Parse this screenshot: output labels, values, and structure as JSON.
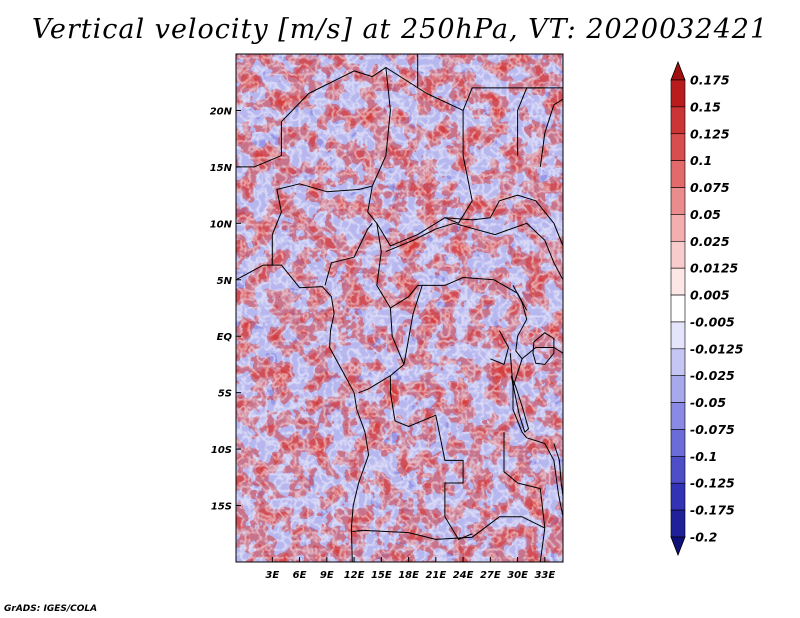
{
  "title": "Vertical velocity [m/s] at 250hPa, VT: 2020032421",
  "credit": "GrADS: IGES/COLA",
  "map": {
    "lon_range": [
      -1,
      35
    ],
    "lat_range": [
      -20,
      25
    ],
    "x_ticks": [
      "3E",
      "6E",
      "9E",
      "12E",
      "15E",
      "18E",
      "21E",
      "24E",
      "27E",
      "30E",
      "33E"
    ],
    "x_tick_values": [
      3,
      6,
      9,
      12,
      15,
      18,
      21,
      24,
      27,
      30,
      33
    ],
    "y_ticks": [
      "20N",
      "15N",
      "10N",
      "5N",
      "EQ",
      "5S",
      "10S",
      "15S"
    ],
    "y_tick_values": [
      20,
      15,
      10,
      5,
      0,
      -5,
      -10,
      -15
    ]
  },
  "colorbar": {
    "labels": [
      "0.175",
      "0.15",
      "0.125",
      "0.1",
      "0.075",
      "0.05",
      "0.025",
      "0.0125",
      "0.005",
      "-0.005",
      "-0.0125",
      "-0.025",
      "-0.05",
      "-0.075",
      "-0.1",
      "-0.125",
      "-0.175",
      "-0.2"
    ],
    "colors": [
      "#a01010",
      "#b81c1c",
      "#cc3535",
      "#d84e4e",
      "#e26a6a",
      "#eb8c8c",
      "#f3aeae",
      "#f8cccc",
      "#fce6e6",
      "#ffffff",
      "#e4e4fb",
      "#c6c6f4",
      "#a8a8ec",
      "#8a8ae4",
      "#6c6cd8",
      "#4e4ec8",
      "#3232b4",
      "#20209a",
      "#10107a"
    ]
  }
}
